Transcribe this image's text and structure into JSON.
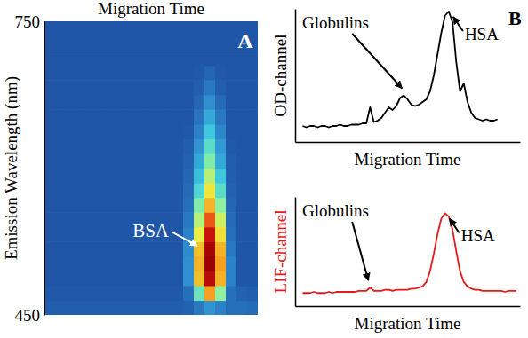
{
  "chart_data": [
    {
      "type": "heatmap",
      "panel_label": "A",
      "x_label": "Migration Time",
      "y_label": "Emission Wavelength (nm)",
      "ylim": [
        450,
        750
      ],
      "yticks": [
        450,
        750
      ],
      "tick_labels": "y",
      "zlim": [
        0,
        100
      ],
      "y": [
        457.5,
        472.5,
        487.5,
        502.5,
        517.5,
        532.5,
        547.5,
        562.5,
        577.5,
        592.5,
        607.5,
        622.5,
        637.5,
        652.5,
        667.5,
        682.5,
        697.5,
        712.5,
        727.5,
        742.5
      ],
      "cells": [
        [
          14,
          14,
          14,
          14,
          14,
          14,
          14,
          14,
          14,
          14,
          14,
          14,
          14,
          15,
          20,
          26,
          22,
          18,
          18,
          17
        ],
        [
          13,
          13,
          13,
          13,
          13,
          13,
          13,
          13,
          13,
          13,
          13,
          13,
          13,
          18,
          45,
          75,
          50,
          18,
          15,
          14
        ],
        [
          12,
          12,
          12,
          12,
          12,
          12,
          12,
          12,
          12,
          12,
          12,
          12,
          12,
          25,
          70,
          95,
          72,
          22,
          12,
          12
        ],
        [
          12,
          12,
          12,
          12,
          12,
          12,
          12,
          12,
          12,
          12,
          12,
          12,
          12,
          25,
          72,
          100,
          75,
          22,
          12,
          12
        ],
        [
          12,
          12,
          12,
          12,
          12,
          12,
          12,
          12,
          12,
          12,
          12,
          12,
          12,
          24,
          70,
          98,
          72,
          20,
          12,
          12
        ],
        [
          12,
          12,
          12,
          12,
          12,
          12,
          12,
          12,
          12,
          12,
          12,
          12,
          12,
          22,
          62,
          92,
          65,
          18,
          12,
          12
        ],
        [
          12,
          12,
          12,
          12,
          12,
          12,
          12,
          12,
          12,
          12,
          12,
          12,
          12,
          20,
          55,
          82,
          58,
          17,
          12,
          12
        ],
        [
          12,
          12,
          12,
          12,
          12,
          12,
          12,
          12,
          12,
          12,
          12,
          12,
          12,
          18,
          48,
          72,
          50,
          16,
          12,
          12
        ],
        [
          12,
          12,
          12,
          12,
          12,
          12,
          12,
          12,
          12,
          12,
          12,
          12,
          12,
          17,
          40,
          64,
          42,
          15,
          12,
          12
        ],
        [
          12,
          12,
          12,
          12,
          12,
          12,
          12,
          12,
          12,
          12,
          12,
          12,
          12,
          16,
          34,
          55,
          36,
          14,
          12,
          12
        ],
        [
          12,
          12,
          12,
          12,
          12,
          12,
          12,
          12,
          12,
          12,
          12,
          12,
          12,
          15,
          30,
          48,
          30,
          14,
          12,
          12
        ],
        [
          12,
          12,
          12,
          12,
          12,
          12,
          12,
          12,
          12,
          12,
          12,
          12,
          12,
          14,
          26,
          42,
          27,
          13,
          12,
          12
        ],
        [
          12,
          12,
          12,
          12,
          12,
          12,
          12,
          12,
          12,
          12,
          12,
          12,
          12,
          13,
          22,
          36,
          23,
          12,
          12,
          12
        ],
        [
          12,
          12,
          12,
          12,
          12,
          12,
          12,
          12,
          12,
          12,
          12,
          12,
          12,
          12,
          19,
          30,
          20,
          12,
          12,
          12
        ],
        [
          12,
          12,
          12,
          12,
          12,
          12,
          12,
          12,
          12,
          12,
          12,
          12,
          12,
          12,
          16,
          25,
          17,
          12,
          12,
          12
        ],
        [
          12,
          12,
          12,
          12,
          12,
          12,
          12,
          12,
          12,
          12,
          12,
          12,
          12,
          12,
          14,
          20,
          14,
          12,
          12,
          12
        ],
        [
          12,
          12,
          12,
          12,
          12,
          12,
          12,
          12,
          12,
          12,
          12,
          12,
          12,
          12,
          13,
          16,
          13,
          12,
          12,
          12
        ],
        [
          12,
          12,
          12,
          12,
          12,
          12,
          12,
          12,
          12,
          12,
          12,
          12,
          12,
          12,
          12,
          12,
          12,
          12,
          12,
          12
        ],
        [
          12,
          12,
          12,
          12,
          12,
          12,
          12,
          12,
          12,
          12,
          12,
          12,
          12,
          12,
          12,
          12,
          12,
          12,
          12,
          12
        ],
        [
          12,
          12,
          12,
          12,
          12,
          12,
          12,
          12,
          12,
          12,
          12,
          12,
          12,
          12,
          12,
          12,
          12,
          12,
          12,
          12
        ]
      ],
      "annotations": [
        {
          "text": "BSA"
        }
      ]
    },
    {
      "type": "line",
      "panel_label": "B",
      "x_label": "Migration Time",
      "y_label": "OD-channel",
      "tick_labels": false,
      "xlim": [
        0,
        60
      ],
      "ylim": [
        0,
        100
      ],
      "color": "#000000",
      "x": [
        2,
        3,
        4,
        5,
        6,
        7,
        8,
        9,
        10,
        11,
        12,
        13,
        14,
        15,
        16,
        17,
        18,
        19,
        20,
        21,
        22,
        23,
        24,
        25,
        26,
        27,
        28,
        29,
        30,
        31,
        32,
        33,
        34,
        35,
        36,
        37,
        38,
        39,
        40,
        41,
        42,
        43,
        44,
        45,
        46,
        47,
        48,
        49,
        50,
        51,
        52,
        53,
        54
      ],
      "values": [
        12,
        11,
        12,
        12,
        11,
        12,
        12,
        11,
        12,
        12,
        13,
        12,
        12,
        13,
        13,
        13,
        14,
        14,
        26,
        15,
        16,
        18,
        22,
        26,
        24,
        27,
        33,
        35,
        32,
        28,
        27,
        28,
        30,
        32,
        38,
        50,
        66,
        82,
        95,
        98,
        90,
        60,
        38,
        44,
        30,
        22,
        18,
        17,
        16,
        17,
        16,
        16,
        17
      ],
      "annotations": [
        {
          "text": "Globulins",
          "x": 29
        },
        {
          "text": "HSA",
          "x": 41
        }
      ]
    },
    {
      "type": "line",
      "x_label": "Migration Time",
      "y_label": "LIF-channel",
      "tick_labels": false,
      "xlim": [
        0,
        60
      ],
      "ylim": [
        0,
        100
      ],
      "color": "#e41a1c",
      "x": [
        2,
        3,
        4,
        5,
        6,
        7,
        8,
        9,
        10,
        11,
        12,
        13,
        14,
        15,
        16,
        17,
        18,
        19,
        20,
        21,
        22,
        23,
        24,
        25,
        26,
        27,
        28,
        29,
        30,
        31,
        32,
        33,
        34,
        35,
        36,
        37,
        38,
        39,
        40,
        41,
        42,
        43,
        44,
        45,
        46,
        47,
        48,
        49,
        50,
        51,
        52,
        53,
        54,
        55,
        56,
        57,
        58,
        59
      ],
      "values": [
        12,
        12,
        12,
        13,
        12,
        12,
        12,
        13,
        12,
        13,
        13,
        13,
        13,
        13,
        13,
        14,
        14,
        14,
        17,
        14,
        14,
        14,
        15,
        15,
        14,
        15,
        15,
        15,
        15,
        16,
        16,
        17,
        18,
        22,
        32,
        48,
        66,
        80,
        85,
        82,
        70,
        50,
        32,
        22,
        18,
        16,
        15,
        15,
        14,
        14,
        14,
        14,
        14,
        14,
        13,
        14,
        14,
        14
      ],
      "annotations": [
        {
          "text": "Globulins",
          "x": 20
        },
        {
          "text": "HSA",
          "x": 40
        }
      ]
    }
  ]
}
